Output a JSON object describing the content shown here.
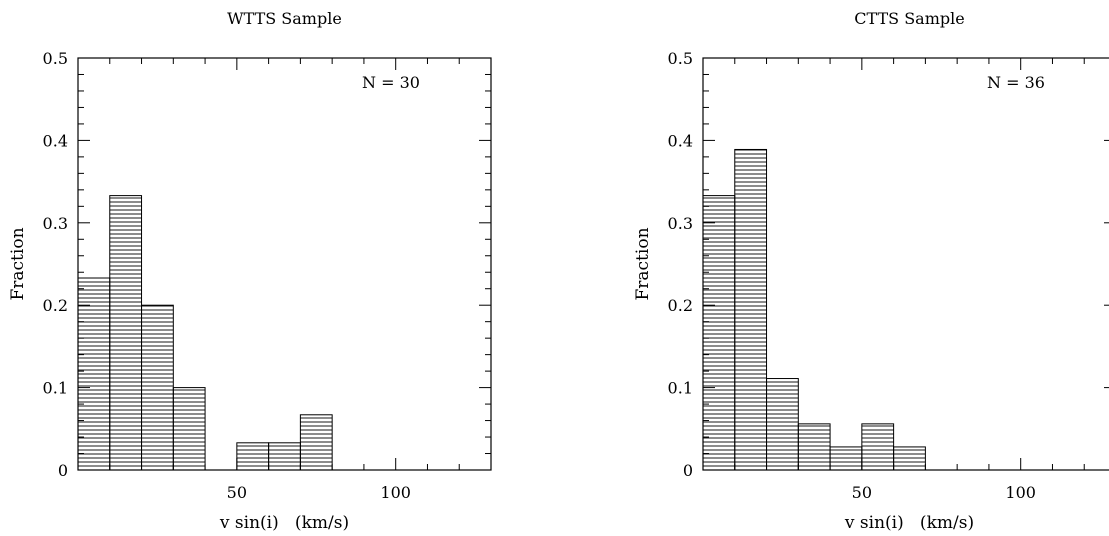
{
  "chart_data": [
    {
      "type": "bar",
      "title": "WTTS Sample",
      "xlabel": "v sin(i)   (km/s)",
      "ylabel": "Fraction",
      "annotation": "N = 30",
      "xlim": [
        0,
        130
      ],
      "ylim": [
        0,
        0.5
      ],
      "x_ticks": [
        50,
        100
      ],
      "y_ticks": [
        0,
        0.1,
        0.2,
        0.3,
        0.4,
        0.5
      ],
      "y_tick_labels": [
        "0",
        "0.1",
        "0.2",
        "0.3",
        "0.4",
        "0.5"
      ],
      "bin_edges": [
        0,
        10,
        20,
        30,
        40,
        50,
        60,
        70,
        80
      ],
      "values": [
        0.233,
        0.333,
        0.2,
        0.1,
        0,
        0.033,
        0.033,
        0.067
      ],
      "fill": "horizontal-hatch"
    },
    {
      "type": "bar",
      "title": "CTTS Sample",
      "xlabel": "v sin(i)   (km/s)",
      "ylabel": "Fraction",
      "annotation": "N = 36",
      "xlim": [
        0,
        130
      ],
      "ylim": [
        0,
        0.5
      ],
      "x_ticks": [
        50,
        100
      ],
      "y_ticks": [
        0,
        0.1,
        0.2,
        0.3,
        0.4,
        0.5
      ],
      "y_tick_labels": [
        "0",
        "0.1",
        "0.2",
        "0.3",
        "0.4",
        "0.5"
      ],
      "bin_edges": [
        0,
        10,
        20,
        30,
        40,
        50,
        60,
        70
      ],
      "values": [
        0.333,
        0.389,
        0.111,
        0.056,
        0.028,
        0.056,
        0.028
      ],
      "fill": "horizontal-hatch"
    }
  ]
}
